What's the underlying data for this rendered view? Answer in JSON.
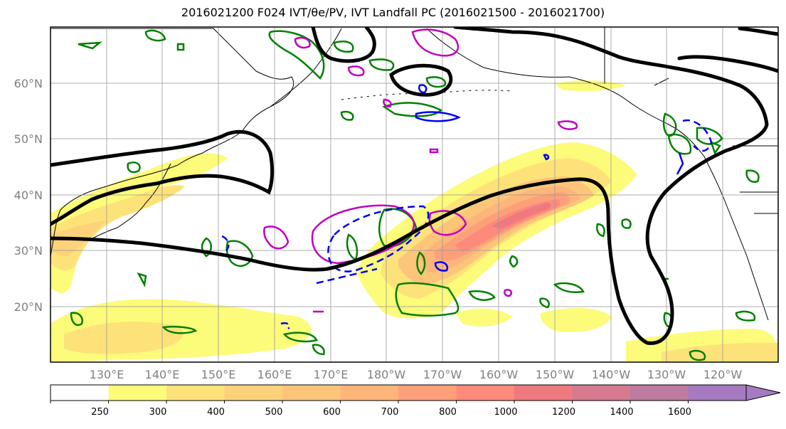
{
  "title": "2016021200 F024 IVT/θe/PV, IVT Landfall PC (2016021500 - 2016021700)",
  "map": {
    "lat_labels": [
      "60°N",
      "50°N",
      "40°N",
      "30°N",
      "20°N"
    ],
    "lon_labels": [
      "130°E",
      "140°E",
      "150°E",
      "160°E",
      "170°E",
      "180°W",
      "170°W",
      "160°W",
      "150°W",
      "140°W",
      "130°W",
      "120°W"
    ],
    "lon_range": [
      "120°E",
      "250°E"
    ],
    "lat_range": [
      "10°N",
      "70°N"
    ],
    "gridlines": true
  },
  "colorbar": {
    "ticks": [
      "250",
      "300",
      "400",
      "500",
      "600",
      "700",
      "800",
      "1000",
      "1200",
      "1400",
      "1600"
    ],
    "colors": [
      "#ffffff",
      "#fdfb7a",
      "#fde27a",
      "#fdd27a",
      "#fdc57a",
      "#fdb57a",
      "#fda07a",
      "#fd8a7a",
      "#ee7a80",
      "#d67a8f",
      "#be7aa0",
      "#a67ac0"
    ],
    "extend": "max"
  },
  "contour_colors": {
    "black": "#000000",
    "green": "#008000",
    "magenta": "#bf00bf",
    "blue": "#0000ee"
  }
}
